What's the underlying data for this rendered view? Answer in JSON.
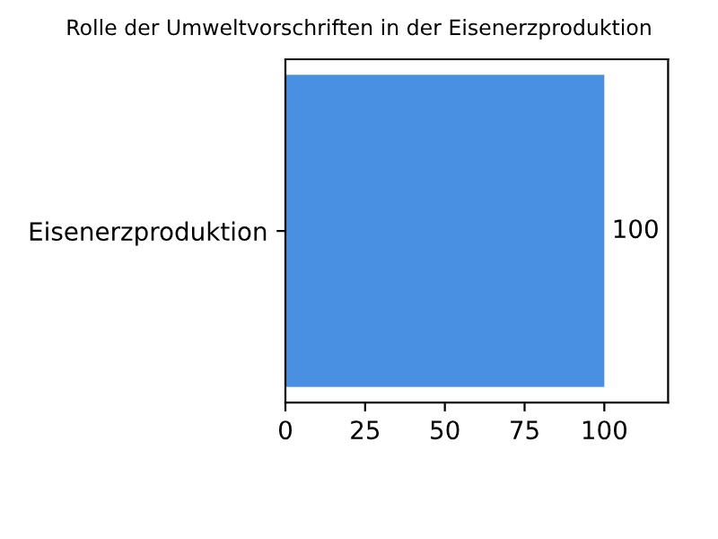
{
  "chart_data": {
    "type": "bar",
    "orientation": "horizontal",
    "title": "Rolle der Umweltvorschriften in der Eisenerzproduktion",
    "categories": [
      "Eisenerzproduktion"
    ],
    "values": [
      100
    ],
    "color": "#4a90e2",
    "xlim": [
      0,
      120
    ],
    "xticks": [
      0,
      25,
      50,
      75,
      100
    ],
    "data_labels": true,
    "grid": false
  }
}
